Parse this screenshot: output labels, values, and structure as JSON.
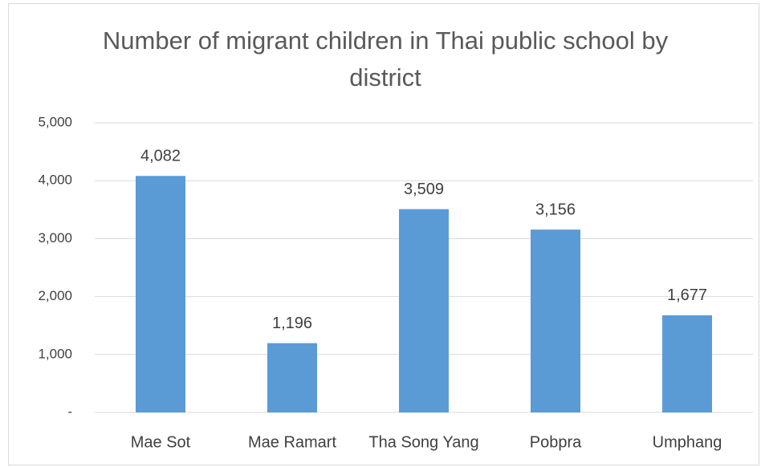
{
  "chart_data": {
    "type": "bar",
    "title": "Number of migrant children in Thai public school by district",
    "categories": [
      "Mae Sot",
      "Mae Ramart",
      "Tha Song Yang",
      "Pobpra",
      "Umphang"
    ],
    "values": [
      4082,
      1196,
      3509,
      3156,
      1677
    ],
    "value_labels": [
      "4,082",
      "1,196",
      "3,509",
      "3,156",
      "1,677"
    ],
    "color": "#5b9bd5",
    "ylim": [
      0,
      5000
    ],
    "yticks": [
      {
        "value": 0,
        "label": "-"
      },
      {
        "value": 1000,
        "label": "1,000"
      },
      {
        "value": 2000,
        "label": "2,000"
      },
      {
        "value": 3000,
        "label": "3,000"
      },
      {
        "value": 4000,
        "label": "4,000"
      },
      {
        "value": 5000,
        "label": "5,000"
      }
    ],
    "grid": true
  }
}
